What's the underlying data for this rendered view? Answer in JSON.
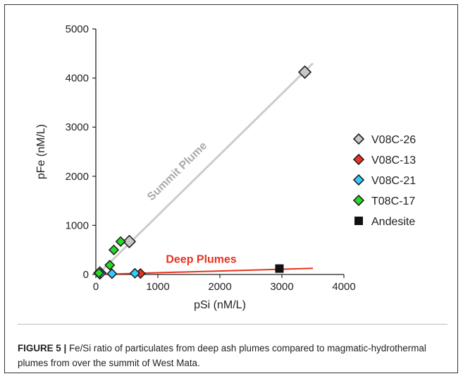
{
  "chart_data": {
    "type": "scatter",
    "xlabel": "pSi (nM/L)",
    "ylabel": "pFe (nM/L)",
    "xlim": [
      0,
      4000
    ],
    "ylim": [
      0,
      5000
    ],
    "xticks": [
      "0",
      "1000",
      "2000",
      "3000",
      "4000"
    ],
    "yticks": [
      "0",
      "1000",
      "2000",
      "3000",
      "4000",
      "5000"
    ],
    "grid": false,
    "legend_position": "right",
    "series": [
      {
        "name": "V08C-26",
        "marker": "diamond",
        "color": "#c8c8c8",
        "points": [
          [
            65,
            30
          ],
          [
            540,
            670
          ],
          [
            3370,
            4120
          ]
        ]
      },
      {
        "name": "V08C-13",
        "marker": "diamond",
        "color": "#ee3322",
        "points": [
          [
            720,
            20
          ]
        ]
      },
      {
        "name": "V08C-21",
        "marker": "diamond",
        "color": "#33ccff",
        "points": [
          [
            85,
            25
          ],
          [
            260,
            15
          ],
          [
            630,
            25
          ]
        ]
      },
      {
        "name": "T08C-17",
        "marker": "diamond",
        "color": "#22dd22",
        "points": [
          [
            50,
            30
          ],
          [
            225,
            190
          ],
          [
            290,
            500
          ],
          [
            400,
            670
          ]
        ]
      },
      {
        "name": "Andesite",
        "marker": "square",
        "color": "#111111",
        "points": [
          [
            2960,
            120
          ]
        ]
      }
    ],
    "trendlines": [
      {
        "name": "Summit Plume",
        "color": "#cccccc",
        "label_color": "#aaaaaa",
        "from": [
          30,
          0
        ],
        "to": [
          3500,
          4300
        ]
      },
      {
        "name": "Deep Plumes",
        "color": "#e8321e",
        "label_color": "#e8321e",
        "from": [
          30,
          0
        ],
        "to": [
          3500,
          125
        ]
      }
    ],
    "annotations": [
      "Summit Plume",
      "Deep Plumes"
    ]
  },
  "caption": {
    "label": "FIGURE 5 |",
    "text": " Fe/Si ratio of particulates from deep ash plumes compared to magmatic-hydrothermal plumes from over the summit of West Mata."
  }
}
